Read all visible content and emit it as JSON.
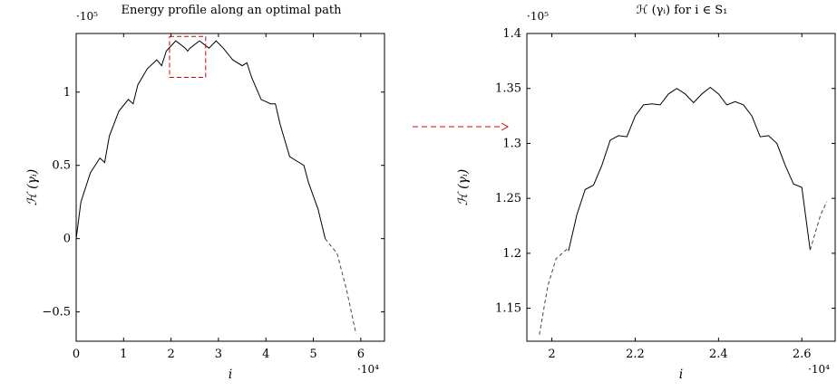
{
  "chart_data": [
    {
      "type": "line",
      "title": "Energy profile along an optimal path",
      "xlabel": "i",
      "ylabel": "ℋ (γᵢ)",
      "x_multiplier": "·10⁴",
      "y_multiplier": "·10⁵",
      "xlim": [
        0,
        6.5
      ],
      "ylim": [
        -0.7,
        1.4
      ],
      "x_ticks": [
        0,
        1,
        2,
        3,
        4,
        5,
        6
      ],
      "x_tick_labels": [
        "0",
        "1",
        "2",
        "3",
        "4",
        "5",
        "6"
      ],
      "y_ticks": [
        -0.5,
        0,
        0.5,
        1
      ],
      "y_tick_labels": [
        "−0.5",
        "0",
        "0.5",
        "1"
      ],
      "grid": false,
      "series": [
        {
          "style": "solid",
          "x": [
            0.0,
            0.1,
            0.3,
            0.5,
            0.6,
            0.7,
            0.9,
            1.1,
            1.2,
            1.3,
            1.5,
            1.7,
            1.8,
            1.9,
            2.1,
            2.3,
            2.35,
            2.4,
            2.6,
            2.8,
            2.95,
            3.1,
            3.3,
            3.5,
            3.6,
            3.7,
            3.9,
            4.1,
            4.2,
            4.3,
            4.5,
            4.7,
            4.8,
            4.9,
            5.1,
            5.25
          ],
          "y": [
            0.0,
            0.25,
            0.45,
            0.55,
            0.52,
            0.7,
            0.87,
            0.95,
            0.92,
            1.05,
            1.16,
            1.22,
            1.18,
            1.28,
            1.35,
            1.3,
            1.28,
            1.3,
            1.35,
            1.3,
            1.35,
            1.3,
            1.22,
            1.18,
            1.2,
            1.1,
            0.95,
            0.92,
            0.92,
            0.78,
            0.56,
            0.52,
            0.5,
            0.38,
            0.2,
            0.0
          ]
        },
        {
          "style": "dashed",
          "x": [
            5.25,
            5.5,
            5.7,
            5.9
          ],
          "y": [
            0.0,
            -0.1,
            -0.35,
            -0.65
          ]
        }
      ],
      "annotations": [
        {
          "type": "dashed-rectangle",
          "color": "#e00000",
          "x_range": [
            1.97,
            2.73
          ],
          "y_range": [
            1.1,
            1.38
          ]
        }
      ]
    },
    {
      "type": "line",
      "title": "ℋ (γᵢ) for i ∈ S₁",
      "xlabel": "i",
      "ylabel": "ℋ (γᵢ)",
      "x_multiplier": "·10⁴",
      "y_multiplier": "·10⁵",
      "xlim": [
        1.94,
        2.68
      ],
      "ylim": [
        1.12,
        1.4
      ],
      "x_ticks": [
        2.0,
        2.2,
        2.4,
        2.6
      ],
      "x_tick_labels": [
        "2",
        "2.2",
        "2.4",
        "2.6"
      ],
      "y_ticks": [
        1.15,
        1.2,
        1.25,
        1.3,
        1.35,
        1.4
      ],
      "y_tick_labels": [
        "1.15",
        "1.2",
        "1.25",
        "1.3",
        "1.35",
        "1.4"
      ],
      "grid": false,
      "series": [
        {
          "style": "dashed",
          "x": [
            1.97,
            1.99,
            2.01,
            2.04
          ],
          "y": [
            1.126,
            1.17,
            1.195,
            1.205
          ]
        },
        {
          "style": "solid",
          "x": [
            2.04,
            2.06,
            2.08,
            2.1,
            2.12,
            2.14,
            2.16,
            2.18,
            2.2,
            2.22,
            2.24,
            2.26,
            2.28,
            2.3,
            2.32,
            2.34,
            2.36,
            2.38,
            2.4,
            2.42,
            2.44,
            2.46,
            2.48,
            2.5,
            2.52,
            2.54,
            2.56,
            2.58,
            2.6,
            2.62
          ],
          "y": [
            1.202,
            1.235,
            1.258,
            1.262,
            1.28,
            1.303,
            1.307,
            1.306,
            1.325,
            1.335,
            1.336,
            1.335,
            1.345,
            1.35,
            1.345,
            1.337,
            1.345,
            1.351,
            1.345,
            1.335,
            1.338,
            1.335,
            1.325,
            1.306,
            1.307,
            1.3,
            1.28,
            1.263,
            1.26,
            1.203
          ]
        },
        {
          "style": "dashed",
          "x": [
            2.62,
            2.645,
            2.66
          ],
          "y": [
            1.203,
            1.235,
            1.247
          ]
        }
      ]
    },
    {
      "type": "annotation",
      "arrow": {
        "style": "dashed",
        "color": "#e00000",
        "direction": "right"
      }
    }
  ]
}
